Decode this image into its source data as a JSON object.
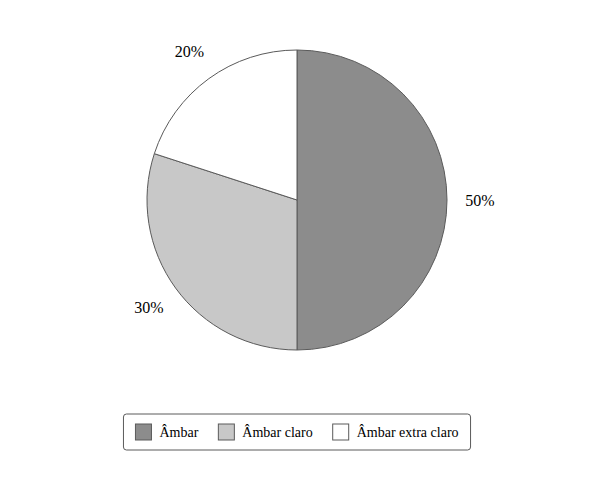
{
  "chart_data": {
    "type": "pie",
    "categories": [
      "Âmbar",
      "Âmbar claro",
      "Âmbar extra claro"
    ],
    "values": [
      50,
      30,
      20
    ],
    "value_labels": [
      "50%",
      "30%",
      "20%"
    ],
    "colors": [
      "#8c8c8c",
      "#c8c8c8",
      "#ffffff"
    ],
    "data_labels": true,
    "legend": "bottom"
  }
}
